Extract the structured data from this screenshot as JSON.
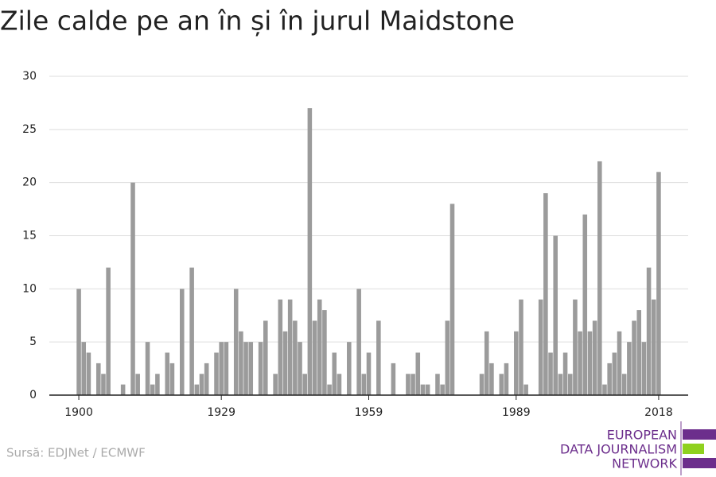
{
  "chart_data": {
    "type": "bar",
    "title": "Zile calde pe an în și în jurul Maidstone",
    "source": "Sursă: EDJNet / ECMWF",
    "logo": [
      "EUROPEAN",
      "DATA JOURNALISM",
      "NETWORK"
    ],
    "color": "#9b9b9b",
    "x": [
      1900,
      1901,
      1902,
      1903,
      1904,
      1905,
      1906,
      1907,
      1908,
      1909,
      1910,
      1911,
      1912,
      1913,
      1914,
      1915,
      1916,
      1917,
      1918,
      1919,
      1920,
      1921,
      1922,
      1923,
      1924,
      1925,
      1926,
      1927,
      1928,
      1929,
      1930,
      1931,
      1932,
      1933,
      1934,
      1935,
      1936,
      1937,
      1938,
      1939,
      1940,
      1941,
      1942,
      1943,
      1944,
      1945,
      1946,
      1947,
      1948,
      1949,
      1950,
      1951,
      1952,
      1953,
      1954,
      1955,
      1956,
      1957,
      1958,
      1959,
      1960,
      1961,
      1962,
      1963,
      1964,
      1965,
      1966,
      1967,
      1968,
      1969,
      1970,
      1971,
      1972,
      1973,
      1974,
      1975,
      1976,
      1977,
      1978,
      1979,
      1980,
      1981,
      1982,
      1983,
      1984,
      1985,
      1986,
      1987,
      1988,
      1989,
      1990,
      1991,
      1992,
      1993,
      1994,
      1995,
      1996,
      1997,
      1998,
      1999,
      2000,
      2001,
      2002,
      2003,
      2004,
      2005,
      2006,
      2007,
      2008,
      2009,
      2010,
      2011,
      2012,
      2013,
      2014,
      2015,
      2016,
      2017,
      2018
    ],
    "values": [
      10,
      5,
      4,
      0,
      3,
      2,
      12,
      0,
      0,
      1,
      0,
      20,
      2,
      0,
      5,
      1,
      2,
      0,
      4,
      3,
      0,
      10,
      0,
      12,
      1,
      2,
      3,
      0,
      4,
      5,
      5,
      0,
      10,
      6,
      5,
      5,
      0,
      5,
      7,
      0,
      2,
      9,
      6,
      9,
      7,
      5,
      2,
      27,
      7,
      9,
      8,
      1,
      4,
      2,
      0,
      5,
      0,
      10,
      2,
      4,
      0,
      7,
      0,
      0,
      3,
      0,
      0,
      2,
      2,
      4,
      1,
      1,
      0,
      2,
      1,
      7,
      18,
      0,
      0,
      0,
      0,
      0,
      2,
      6,
      3,
      0,
      2,
      3,
      0,
      6,
      9,
      1,
      0,
      0,
      9,
      19,
      4,
      15,
      2,
      4,
      2,
      9,
      6,
      17,
      6,
      7,
      22,
      1,
      3,
      4,
      6,
      2,
      5,
      7,
      8,
      5,
      12,
      9,
      21
    ],
    "xlim": [
      1894,
      2024
    ],
    "xticks": [
      1900,
      1929,
      1959,
      1989,
      2018
    ],
    "ylim": [
      0,
      30
    ],
    "yticks": [
      0,
      5,
      10,
      15,
      20,
      25,
      30
    ],
    "grid": true
  }
}
